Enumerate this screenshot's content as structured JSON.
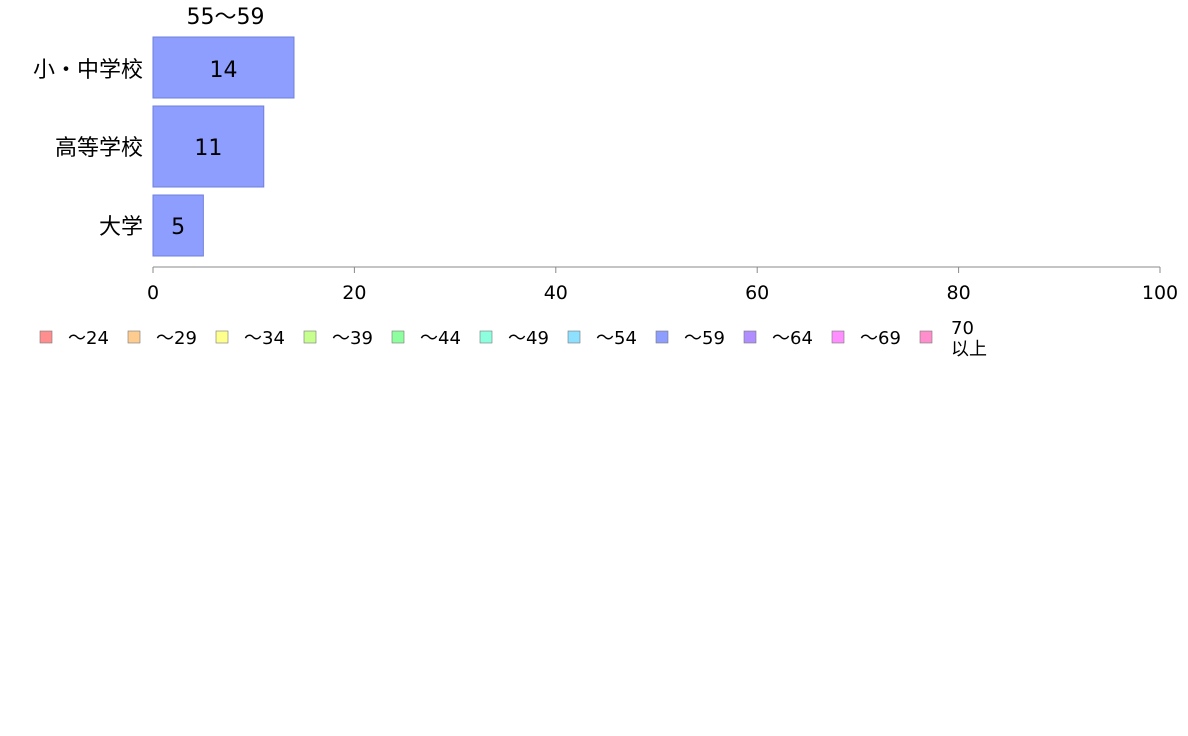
{
  "chart_data": {
    "type": "bar",
    "orientation": "horizontal",
    "stacked": true,
    "categories": [
      "小・中学校",
      "高等学校",
      "大学"
    ],
    "series": [
      {
        "name": "～24",
        "color": "#ff8e8e",
        "values": [
          0,
          0,
          0
        ]
      },
      {
        "name": "～29",
        "color": "#ffcc8f",
        "values": [
          0,
          0,
          0
        ]
      },
      {
        "name": "～34",
        "color": "#ffff8e",
        "values": [
          0,
          0,
          0
        ]
      },
      {
        "name": "～39",
        "color": "#c6ff8e",
        "values": [
          0,
          0,
          0
        ]
      },
      {
        "name": "～44",
        "color": "#8eff9e",
        "values": [
          0,
          0,
          0
        ]
      },
      {
        "name": "～49",
        "color": "#8effde",
        "values": [
          0,
          0,
          0
        ]
      },
      {
        "name": "～54",
        "color": "#8ee0ff",
        "values": [
          0,
          0,
          0
        ]
      },
      {
        "name": "～59",
        "color": "#8e9eff",
        "values": [
          14,
          11,
          5
        ]
      },
      {
        "name": "～64",
        "color": "#b08eff",
        "values": [
          0,
          0,
          0
        ]
      },
      {
        "name": "～69",
        "color": "#ff8eff",
        "values": [
          0,
          0,
          0
        ]
      },
      {
        "name": "70以上",
        "color": "#ff8ecc",
        "values": [
          0,
          0,
          0
        ]
      }
    ],
    "series_caption": "55～59",
    "data_labels": [
      "14",
      "11",
      "5"
    ],
    "xlim": [
      0,
      100
    ],
    "xticks": [
      "0",
      "20",
      "40",
      "60",
      "80",
      "100"
    ],
    "grid": false,
    "legend_position": "bottom"
  }
}
